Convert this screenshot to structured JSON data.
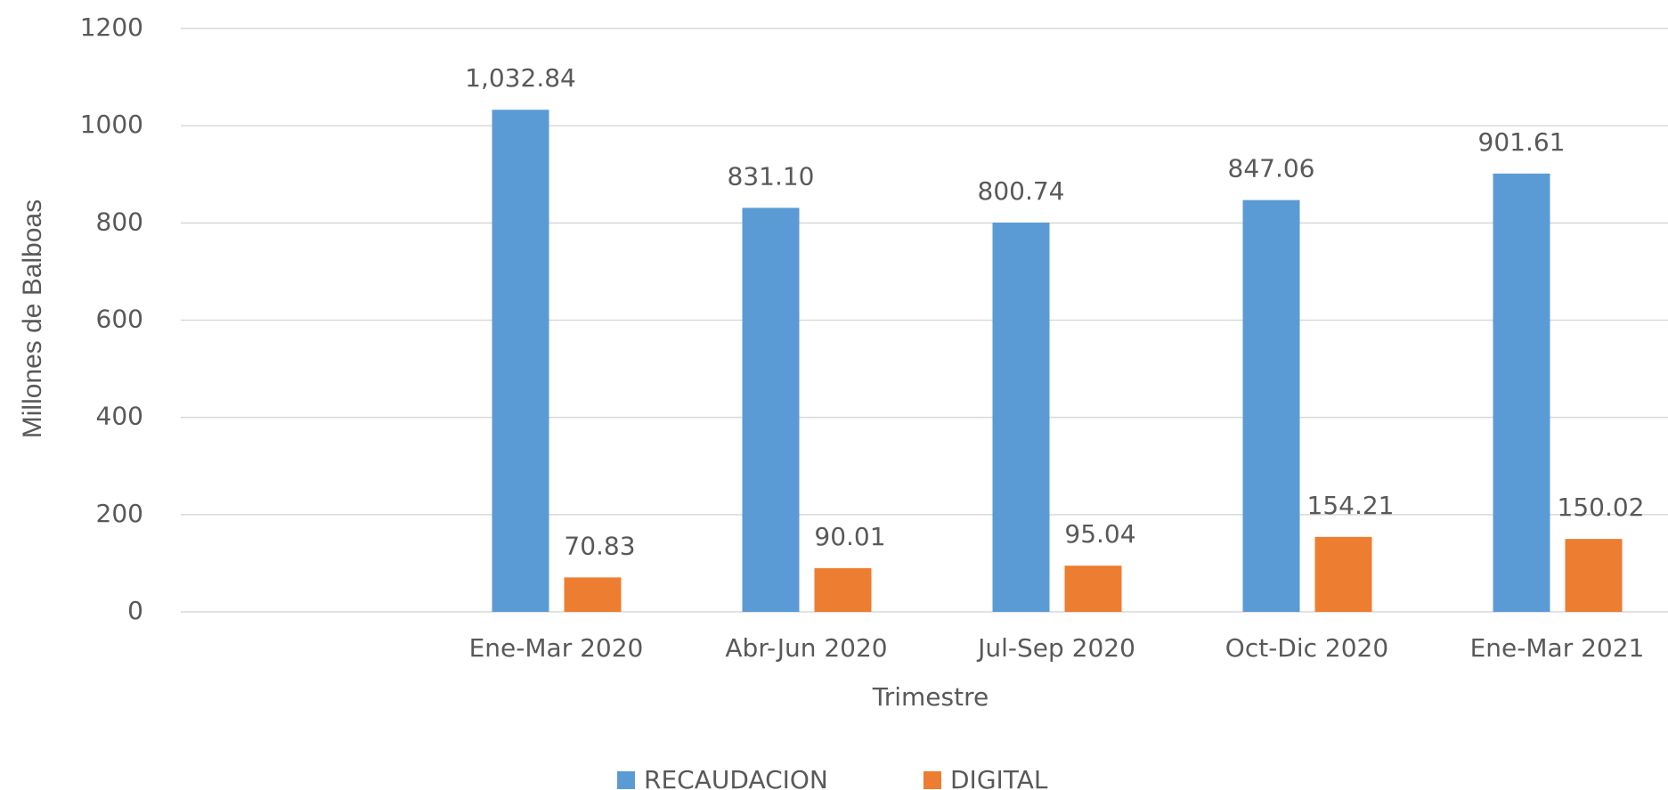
{
  "chart_data": {
    "type": "bar",
    "x_label": "Trimestre",
    "y_label": "Millones de Balboas",
    "categories": [
      null,
      "Ene-Mar 2020",
      "Abr-Jun 2020",
      "Jul-Sep 2020",
      "Oct-Dic 2020",
      "Ene-Mar 2021"
    ],
    "series": [
      {
        "name": "RECAUDACION",
        "color": "#5b9bd5",
        "values": [
          null,
          1032.84,
          831.1,
          800.74,
          847.06,
          901.61
        ],
        "value_labels": [
          null,
          "1,032.84",
          "831.10",
          "800.74",
          "847.06",
          "901.61"
        ]
      },
      {
        "name": "DIGITAL",
        "color": "#ed7d31",
        "values": [
          null,
          70.83,
          90.01,
          95.04,
          154.21,
          150.02
        ],
        "value_labels": [
          null,
          "70.83",
          "90.01",
          "95.04",
          "154.21",
          "150.02"
        ]
      }
    ],
    "ylim": [
      0,
      1200
    ],
    "yticks": [
      0,
      200,
      400,
      600,
      800,
      1000,
      1200
    ],
    "grid": true,
    "legend": "bottom"
  }
}
